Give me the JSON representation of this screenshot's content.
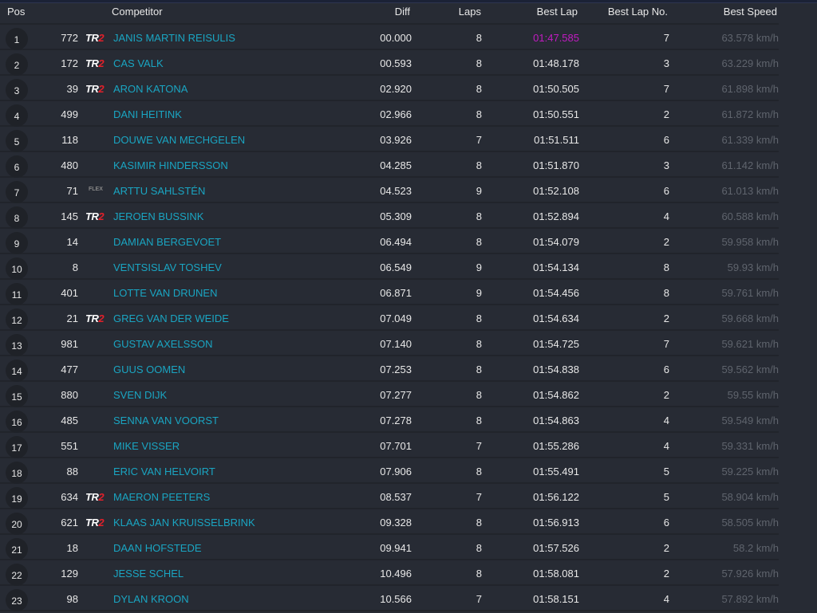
{
  "headers": {
    "pos": "Pos",
    "competitor": "Competitor",
    "diff": "Diff",
    "laps": "Laps",
    "best_lap": "Best Lap",
    "best_lap_no": "Best Lap No.",
    "best_speed": "Best Speed"
  },
  "rows": [
    {
      "pos": "1",
      "num": "772",
      "logo": "TR2",
      "name": "JANIS MARTIN REISULIS",
      "diff": "00.000",
      "laps": "8",
      "best_lap": "01:47.585",
      "best_lap_no": "7",
      "speed": "63.578 km/h",
      "fastest": true
    },
    {
      "pos": "2",
      "num": "172",
      "logo": "TR2",
      "name": "CAS VALK",
      "diff": "00.593",
      "laps": "8",
      "best_lap": "01:48.178",
      "best_lap_no": "3",
      "speed": "63.229 km/h"
    },
    {
      "pos": "3",
      "num": "39",
      "logo": "TR2",
      "name": "ARON KATONA",
      "diff": "02.920",
      "laps": "8",
      "best_lap": "01:50.505",
      "best_lap_no": "7",
      "speed": "61.898 km/h"
    },
    {
      "pos": "4",
      "num": "499",
      "logo": "",
      "name": "DANI HEITINK",
      "diff": "02.966",
      "laps": "8",
      "best_lap": "01:50.551",
      "best_lap_no": "2",
      "speed": "61.872 km/h"
    },
    {
      "pos": "5",
      "num": "118",
      "logo": "",
      "name": "DOUWE VAN MECHGELEN",
      "diff": "03.926",
      "laps": "7",
      "best_lap": "01:51.511",
      "best_lap_no": "6",
      "speed": "61.339 km/h"
    },
    {
      "pos": "6",
      "num": "480",
      "logo": "",
      "name": "KASIMIR HINDERSSON",
      "diff": "04.285",
      "laps": "8",
      "best_lap": "01:51.870",
      "best_lap_no": "3",
      "speed": "61.142 km/h"
    },
    {
      "pos": "7",
      "num": "71",
      "logo": "FLEX",
      "name": "ARTTU SAHLSTÉN",
      "diff": "04.523",
      "laps": "9",
      "best_lap": "01:52.108",
      "best_lap_no": "6",
      "speed": "61.013 km/h"
    },
    {
      "pos": "8",
      "num": "145",
      "logo": "TR2",
      "name": "JEROEN BUSSINK",
      "diff": "05.309",
      "laps": "8",
      "best_lap": "01:52.894",
      "best_lap_no": "4",
      "speed": "60.588 km/h"
    },
    {
      "pos": "9",
      "num": "14",
      "logo": "",
      "name": "DAMIAN BERGEVOET",
      "diff": "06.494",
      "laps": "8",
      "best_lap": "01:54.079",
      "best_lap_no": "2",
      "speed": "59.958 km/h"
    },
    {
      "pos": "10",
      "num": "8",
      "logo": "",
      "name": "VENTSISLAV TOSHEV",
      "diff": "06.549",
      "laps": "9",
      "best_lap": "01:54.134",
      "best_lap_no": "8",
      "speed": "59.93 km/h"
    },
    {
      "pos": "11",
      "num": "401",
      "logo": "",
      "name": "LOTTE VAN DRUNEN",
      "diff": "06.871",
      "laps": "9",
      "best_lap": "01:54.456",
      "best_lap_no": "8",
      "speed": "59.761 km/h"
    },
    {
      "pos": "12",
      "num": "21",
      "logo": "TR2",
      "name": "GREG VAN DER WEIDE",
      "diff": "07.049",
      "laps": "8",
      "best_lap": "01:54.634",
      "best_lap_no": "2",
      "speed": "59.668 km/h"
    },
    {
      "pos": "13",
      "num": "981",
      "logo": "",
      "name": "GUSTAV AXELSSON",
      "diff": "07.140",
      "laps": "8",
      "best_lap": "01:54.725",
      "best_lap_no": "7",
      "speed": "59.621 km/h"
    },
    {
      "pos": "14",
      "num": "477",
      "logo": "",
      "name": "GUUS OOMEN",
      "diff": "07.253",
      "laps": "8",
      "best_lap": "01:54.838",
      "best_lap_no": "6",
      "speed": "59.562 km/h"
    },
    {
      "pos": "15",
      "num": "880",
      "logo": "",
      "name": "SVEN DIJK",
      "diff": "07.277",
      "laps": "8",
      "best_lap": "01:54.862",
      "best_lap_no": "2",
      "speed": "59.55 km/h"
    },
    {
      "pos": "16",
      "num": "485",
      "logo": "",
      "name": "SENNA VAN VOORST",
      "diff": "07.278",
      "laps": "8",
      "best_lap": "01:54.863",
      "best_lap_no": "4",
      "speed": "59.549 km/h"
    },
    {
      "pos": "17",
      "num": "551",
      "logo": "",
      "name": "MIKE VISSER",
      "diff": "07.701",
      "laps": "7",
      "best_lap": "01:55.286",
      "best_lap_no": "4",
      "speed": "59.331 km/h"
    },
    {
      "pos": "18",
      "num": "88",
      "logo": "",
      "name": "ERIC VAN HELVOIRT",
      "diff": "07.906",
      "laps": "8",
      "best_lap": "01:55.491",
      "best_lap_no": "5",
      "speed": "59.225 km/h"
    },
    {
      "pos": "19",
      "num": "634",
      "logo": "TR2",
      "name": "MAERON PEETERS",
      "diff": "08.537",
      "laps": "7",
      "best_lap": "01:56.122",
      "best_lap_no": "5",
      "speed": "58.904 km/h"
    },
    {
      "pos": "20",
      "num": "621",
      "logo": "TR2",
      "name": "KLAAS JAN KRUISSELBRINK",
      "diff": "09.328",
      "laps": "8",
      "best_lap": "01:56.913",
      "best_lap_no": "6",
      "speed": "58.505 km/h"
    },
    {
      "pos": "21",
      "num": "18",
      "logo": "",
      "name": "DAAN HOFSTEDE",
      "diff": "09.941",
      "laps": "8",
      "best_lap": "01:57.526",
      "best_lap_no": "2",
      "speed": "58.2 km/h"
    },
    {
      "pos": "22",
      "num": "129",
      "logo": "",
      "name": "JESSE SCHEL",
      "diff": "10.496",
      "laps": "8",
      "best_lap": "01:58.081",
      "best_lap_no": "2",
      "speed": "57.926 km/h"
    },
    {
      "pos": "23",
      "num": "98",
      "logo": "",
      "name": "DYLAN KROON",
      "diff": "10.566",
      "laps": "7",
      "best_lap": "01:58.151",
      "best_lap_no": "4",
      "speed": "57.892 km/h"
    }
  ]
}
